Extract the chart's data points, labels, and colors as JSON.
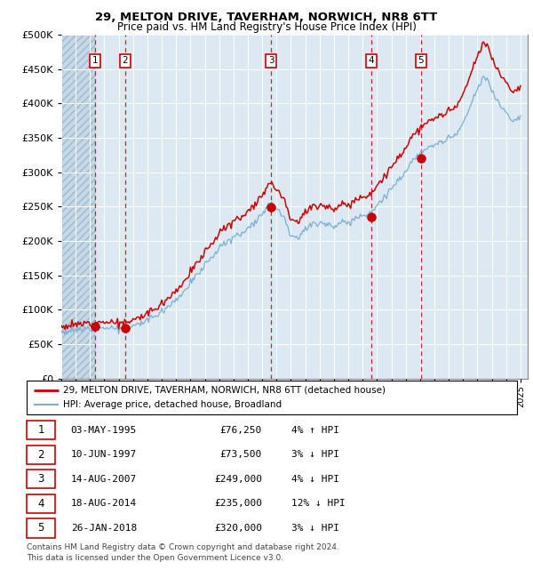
{
  "title1": "29, MELTON DRIVE, TAVERHAM, NORWICH, NR8 6TT",
  "title2": "Price paid vs. HM Land Registry's House Price Index (HPI)",
  "legend1": "29, MELTON DRIVE, TAVERHAM, NORWICH, NR8 6TT (detached house)",
  "legend2": "HPI: Average price, detached house, Broadland",
  "footer": "Contains HM Land Registry data © Crown copyright and database right 2024.\nThis data is licensed under the Open Government Licence v3.0.",
  "sales": [
    {
      "num": 1,
      "date": "1995-05-03",
      "price": 76250,
      "pct": "4%",
      "dir": "↑"
    },
    {
      "num": 2,
      "date": "1997-06-10",
      "price": 73500,
      "pct": "3%",
      "dir": "↓"
    },
    {
      "num": 3,
      "date": "2007-08-14",
      "price": 249000,
      "pct": "4%",
      "dir": "↓"
    },
    {
      "num": 4,
      "date": "2014-08-18",
      "price": 235000,
      "pct": "12%",
      "dir": "↓"
    },
    {
      "num": 5,
      "date": "2018-01-26",
      "price": 320000,
      "pct": "3%",
      "dir": "↓"
    }
  ],
  "sale_dates_display": [
    "03-MAY-1995",
    "10-JUN-1997",
    "14-AUG-2007",
    "18-AUG-2014",
    "26-JAN-2018"
  ],
  "prices_display": [
    "£76,250",
    "£73,500",
    "£249,000",
    "£235,000",
    "£320,000"
  ],
  "hpi_info": [
    "4% ↑ HPI",
    "3% ↓ HPI",
    "4% ↓ HPI",
    "12% ↓ HPI",
    "3% ↓ HPI"
  ],
  "price_line_color": "#cc0000",
  "hpi_line_color": "#7aafd4",
  "background_color": "#dce9f2",
  "grid_color": "#ffffff",
  "dashed_line_color": "#cc0000",
  "ylim": [
    0,
    500000
  ],
  "yticks": [
    0,
    50000,
    100000,
    150000,
    200000,
    250000,
    300000,
    350000,
    400000,
    450000,
    500000
  ],
  "xstart": 1993,
  "xend": 2025,
  "sale_times": [
    1995.34,
    1997.44,
    2007.62,
    2014.62,
    2018.07
  ],
  "sale_prices_actual": [
    76250,
    73500,
    249000,
    235000,
    320000
  ],
  "hpi_anchors_x": [
    1993.0,
    1994.0,
    1995.3,
    1996.0,
    1997.4,
    1998.0,
    1999.0,
    2000.0,
    2001.0,
    2002.0,
    2003.0,
    2004.0,
    2005.0,
    2006.0,
    2007.0,
    2007.6,
    2008.0,
    2008.5,
    2009.0,
    2009.5,
    2010.0,
    2011.0,
    2012.0,
    2013.0,
    2014.0,
    2014.6,
    2015.0,
    2016.0,
    2017.0,
    2017.5,
    2018.0,
    2019.0,
    2020.0,
    2020.5,
    2021.0,
    2021.5,
    2022.0,
    2022.4,
    2022.8,
    2023.0,
    2023.5,
    2024.0,
    2024.5,
    2025.0
  ],
  "hpi_anchors_y": [
    68000,
    70000,
    74000,
    74500,
    72000,
    76000,
    85000,
    98000,
    115000,
    138000,
    165000,
    190000,
    205000,
    218000,
    240000,
    258000,
    248000,
    235000,
    210000,
    205000,
    218000,
    228000,
    222000,
    228000,
    238000,
    242000,
    252000,
    275000,
    302000,
    318000,
    326000,
    340000,
    348000,
    355000,
    370000,
    395000,
    420000,
    438000,
    432000,
    418000,
    400000,
    388000,
    375000,
    380000
  ]
}
